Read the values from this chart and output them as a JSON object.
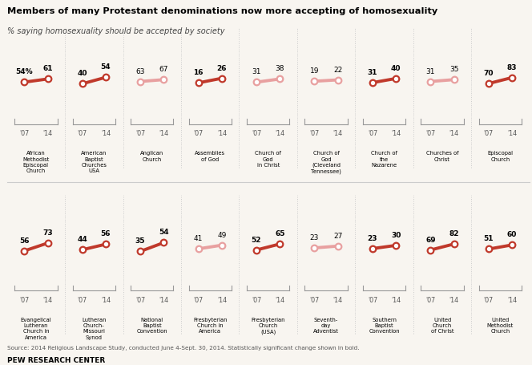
{
  "title": "Members of many Protestant denominations now more accepting of homosexuality",
  "subtitle": "% saying homosexuality should be accepted by society",
  "source": "Source: 2014 Religious Landscape Study, conducted June 4-Sept. 30, 2014. Statistically significant change shown in bold.",
  "credit": "PEW RESEARCH CENTER",
  "row1": [
    {
      "label": "African\nMethodist\nEpiscopal\nChurch",
      "v07": 54,
      "v14": 61,
      "sig": true,
      "pct": true
    },
    {
      "label": "American\nBaptist\nChurches\nUSA",
      "v07": 40,
      "v14": 54,
      "sig": true,
      "pct": false
    },
    {
      "label": "Anglican\nChurch",
      "v07": 63,
      "v14": 67,
      "sig": false,
      "pct": false
    },
    {
      "label": "Assemblies\nof God",
      "v07": 16,
      "v14": 26,
      "sig": true,
      "pct": false
    },
    {
      "label": "Church of\nGod\nin Christ",
      "v07": 31,
      "v14": 38,
      "sig": false,
      "pct": false
    },
    {
      "label": "Church of\nGod\n(Cleveland\nTennessee)",
      "v07": 19,
      "v14": 22,
      "sig": false,
      "pct": false
    },
    {
      "label": "Church of\nthe\nNazarene",
      "v07": 31,
      "v14": 40,
      "sig": true,
      "pct": false
    },
    {
      "label": "Churches of\nChrist",
      "v07": 31,
      "v14": 35,
      "sig": false,
      "pct": false
    },
    {
      "label": "Episcopal\nChurch",
      "v07": 70,
      "v14": 83,
      "sig": true,
      "pct": false
    }
  ],
  "row2": [
    {
      "label": "Evangelical\nLutheran\nChurch in\nAmerica",
      "v07": 56,
      "v14": 73,
      "sig": true,
      "pct": false
    },
    {
      "label": "Lutheran\nChurch-\nMissouri\nSynod",
      "v07": 44,
      "v14": 56,
      "sig": true,
      "pct": false
    },
    {
      "label": "National\nBaptist\nConvention",
      "v07": 35,
      "v14": 54,
      "sig": true,
      "pct": false
    },
    {
      "label": "Presbyterian\nChurch in\nAmerica",
      "v07": 41,
      "v14": 49,
      "sig": false,
      "pct": false
    },
    {
      "label": "Presbyterian\nChurch\n(USA)",
      "v07": 52,
      "v14": 65,
      "sig": true,
      "pct": false
    },
    {
      "label": "Seventh-\nday\nAdventist",
      "v07": 23,
      "v14": 27,
      "sig": false,
      "pct": false
    },
    {
      "label": "Southern\nBaptist\nConvention",
      "v07": 23,
      "v14": 30,
      "sig": true,
      "pct": false
    },
    {
      "label": "United\nChurch\nof Christ",
      "v07": 69,
      "v14": 82,
      "sig": true,
      "pct": false
    },
    {
      "label": "United\nMethodist\nChurch",
      "v07": 51,
      "v14": 60,
      "sig": true,
      "pct": false
    }
  ],
  "color_sig": "#c0392b",
  "color_nonsig": "#e8a0a0",
  "bg_color": "#f8f5f0"
}
